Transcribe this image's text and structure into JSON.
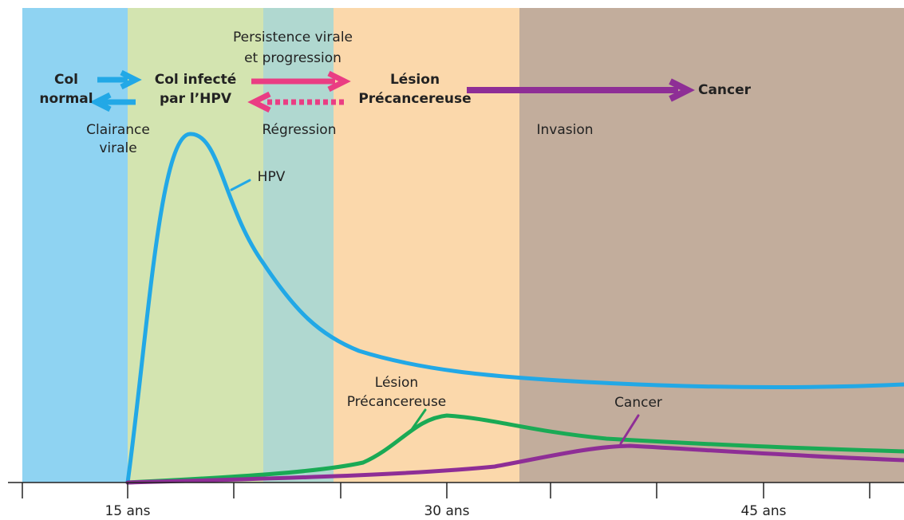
{
  "stages": {
    "normal": [
      "Col",
      "normal"
    ],
    "infected": [
      "Col infecté",
      "par l’HPV"
    ],
    "lesion": [
      "Lésion",
      "Précancereuse"
    ],
    "cancer": "Cancer"
  },
  "transitions": {
    "clearance": [
      "Clairance",
      "virale"
    ],
    "progression": [
      "Persistence virale",
      "et progression"
    ],
    "regression": "Régression",
    "invasion": "Invasion"
  },
  "curves": {
    "hpv": "HPV",
    "lesion": [
      "Lésion",
      "Précancereuse"
    ],
    "cancer": "Cancer"
  },
  "x_axis": {
    "labels": [
      "15 ans",
      "30 ans",
      "45 ans"
    ]
  }
}
